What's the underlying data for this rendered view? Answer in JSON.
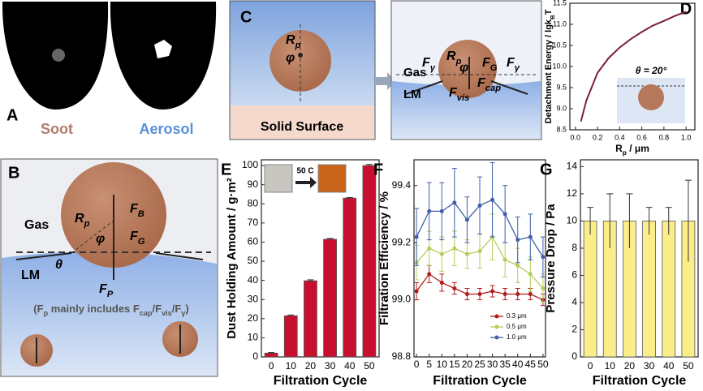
{
  "panels": {
    "A": {
      "label": "A",
      "soot": "Soot",
      "aerosol": "Aerosol"
    },
    "B": {
      "label": "B",
      "gas": "Gas",
      "lm": "LM",
      "rp": [
        "R",
        "p"
      ],
      "phi": "φ",
      "fb": [
        "F",
        "B"
      ],
      "fg": [
        "F",
        "G"
      ],
      "theta": "θ",
      "fp": [
        "F",
        "P"
      ],
      "note": [
        "(F",
        "p",
        " mainly includes F",
        "cap",
        "/F",
        "vis",
        "/F",
        "γ",
        ")"
      ]
    },
    "C": {
      "label": "C",
      "rp": [
        "R",
        "p"
      ],
      "phi": "φ",
      "surface": "Solid Surface",
      "fy_left": [
        "F",
        "γ"
      ],
      "rp2": [
        "R",
        "p"
      ],
      "phi2": "φ",
      "fg": [
        "F",
        "G"
      ],
      "fy_right": [
        "F",
        "γ"
      ],
      "gas": "Gas",
      "lm": "LM",
      "fcap": [
        "F",
        "cap"
      ],
      "fvis": [
        "F",
        "vis"
      ]
    }
  },
  "chart_data": [
    {
      "type": "line",
      "label": "D",
      "ylabel": [
        "Detachment Energy / lgk",
        "B",
        "T"
      ],
      "xlabel": [
        "R",
        "p",
        " / μm"
      ],
      "inset_title": "θ = 20°",
      "color": "#7a1f3d",
      "x": [
        0.05,
        0.1,
        0.2,
        0.3,
        0.4,
        0.5,
        0.6,
        0.7,
        0.8,
        0.9,
        1.0
      ],
      "values": [
        8.7,
        9.2,
        9.85,
        10.2,
        10.45,
        10.65,
        10.82,
        10.97,
        11.08,
        11.2,
        11.3
      ],
      "xlim": [
        -0.05,
        1.08
      ],
      "xticks": [
        {
          "value": 0,
          "label": "0.0"
        },
        0.2,
        0.4,
        0.6,
        0.8,
        {
          "value": 1,
          "label": "1.0"
        }
      ],
      "ylim": [
        8.5,
        11.5
      ],
      "yticks": [
        8.5,
        {
          "value": 9,
          "label": "9.0"
        },
        9.5,
        {
          "value": 10,
          "label": "10.0"
        },
        10.5,
        {
          "value": 11,
          "label": "11.0"
        },
        11.5
      ]
    },
    {
      "type": "bar",
      "label": "E",
      "ylabel": "Dust Holding Amount / g·m²",
      "xlabel": "Filtration Cycle",
      "inset_text": "50 C",
      "color": "#c8102e",
      "categories": [
        "0",
        "10",
        "20",
        "30",
        "40",
        "50"
      ],
      "values": [
        2,
        21.5,
        39.8,
        61.5,
        83,
        100
      ],
      "errors": [
        0.3,
        0.4,
        0.5,
        0.4,
        0.3,
        0.6
      ],
      "ylim": [
        0,
        103
      ],
      "yticks": [
        0,
        10,
        20,
        30,
        40,
        50,
        60,
        70,
        80,
        90,
        100
      ]
    },
    {
      "type": "line",
      "label": "F",
      "ylabel": "Filtration Efficiency / %",
      "xlabel": "Filtration Cycle",
      "x": [
        0,
        5,
        10,
        15,
        20,
        25,
        30,
        35,
        40,
        45,
        50
      ],
      "xlim": [
        -1,
        51
      ],
      "xticks": [
        0,
        5,
        10,
        15,
        20,
        25,
        30,
        35,
        40,
        45,
        50
      ],
      "ylim": [
        98.8,
        99.49
      ],
      "yticks": [
        98.8,
        {
          "value": 99,
          "label": "99.0"
        },
        99.2,
        99.4
      ],
      "series": [
        {
          "name": "0.3 μm",
          "color": "#b01c1c",
          "values": [
            99.03,
            99.09,
            99.06,
            99.04,
            99.02,
            99.02,
            99.03,
            99.02,
            99.02,
            99.02,
            99.0
          ],
          "errors": [
            0.03,
            0.03,
            0.03,
            0.02,
            0.02,
            0.02,
            0.02,
            0.02,
            0.02,
            0.02,
            0.02
          ]
        },
        {
          "name": "0.5 μm",
          "color": "#b5cc5a",
          "values": [
            99.13,
            99.18,
            99.16,
            99.18,
            99.16,
            99.17,
            99.22,
            99.14,
            99.12,
            99.09,
            99.04
          ],
          "errors": [
            0.06,
            0.06,
            0.06,
            0.06,
            0.05,
            0.06,
            0.08,
            0.06,
            0.06,
            0.06,
            0.05
          ]
        },
        {
          "name": "1.0 μm",
          "color": "#3f5fa8",
          "values": [
            99.22,
            99.31,
            99.31,
            99.34,
            99.28,
            99.33,
            99.35,
            99.3,
            99.21,
            99.22,
            99.15
          ],
          "errors": [
            0.1,
            0.1,
            0.1,
            0.12,
            0.08,
            0.1,
            0.13,
            0.1,
            0.08,
            0.08,
            0.07
          ]
        }
      ]
    },
    {
      "type": "bar",
      "label": "G",
      "ylabel": "Pressure Drop / Pa",
      "xlabel": "Filtration Cycle",
      "color": "#fbee8a",
      "categories": [
        "0",
        "10",
        "20",
        "30",
        "40",
        "50"
      ],
      "values": [
        10,
        10,
        10,
        10,
        10,
        10
      ],
      "errors": [
        1,
        2,
        2,
        1,
        1,
        3
      ],
      "ylim": [
        0,
        14.5
      ],
      "yticks": [
        0,
        2,
        4,
        6,
        8,
        10,
        12,
        14
      ]
    }
  ]
}
